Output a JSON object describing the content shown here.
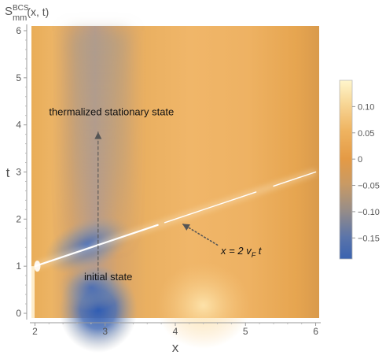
{
  "chart_data": {
    "type": "heatmap",
    "title": "",
    "plot_label": {
      "main": "S",
      "superscript": "BCS",
      "subscript": "mm",
      "args": "(x, t)"
    },
    "xlabel": "x",
    "ylabel": "t",
    "xlim": [
      1.95,
      6.05
    ],
    "ylim": [
      -0.1,
      6.1
    ],
    "xticks": [
      2,
      3,
      4,
      5,
      6
    ],
    "yticks": [
      0,
      1,
      2,
      3,
      4,
      5,
      6
    ],
    "colorbar": {
      "range": [
        -0.19,
        0.15
      ],
      "ticks": [
        0.1,
        0.05,
        0,
        -0.05,
        -0.1,
        -0.15
      ],
      "tick_labels": [
        "0.10",
        "0.05",
        "0",
        "−0.05",
        "−0.10",
        "−0.15"
      ],
      "low_color": "#3a63b0",
      "mid_color": "#e8a852",
      "high_color": "#fff6cc"
    },
    "features": {
      "light_front_line": {
        "from": [
          2.0,
          1.0
        ],
        "to": [
          6.0,
          3.0
        ]
      },
      "blue_spot": {
        "x": 2.9,
        "t": 0.0,
        "value": -0.18
      },
      "gray_band": {
        "x_center": 2.9,
        "t_from": 2.0,
        "t_to": 6.0,
        "value": -0.08
      },
      "bright_spot": {
        "x": 4.4,
        "t": 0.0,
        "value": 0.11
      }
    },
    "annotations": [
      {
        "text": "thermalized stationary state",
        "x": 2.2,
        "t": 4.2
      },
      {
        "text": "initial state",
        "x": 2.7,
        "t": 0.7
      },
      {
        "text": "x = 2 v",
        "subscript": "F",
        "suffix": " t",
        "x": 4.65,
        "t": 1.25
      }
    ],
    "arrows": [
      {
        "style": "dashed",
        "from": [
          2.9,
          0.9
        ],
        "to": [
          2.9,
          3.85
        ]
      },
      {
        "style": "dotted",
        "from": [
          4.6,
          1.45
        ],
        "to": [
          4.1,
          1.9
        ]
      }
    ]
  }
}
